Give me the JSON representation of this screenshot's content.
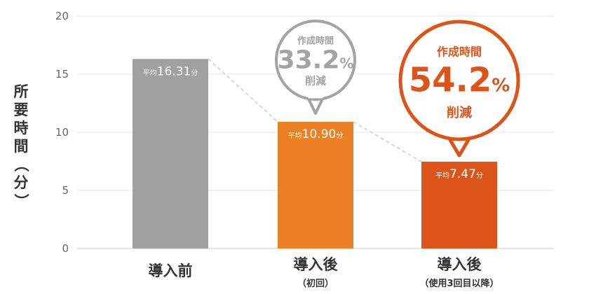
{
  "chart_data": {
    "type": "bar",
    "ylabel": "所要時間（分）",
    "ylim": [
      0,
      20
    ],
    "yticks": [
      0,
      5,
      10,
      15,
      20
    ],
    "grid": true,
    "categories": [
      {
        "label": "導入前",
        "sublabel": ""
      },
      {
        "label": "導入後",
        "sublabel": "（初回）"
      },
      {
        "label": "導入後",
        "sublabel": "（使用3回目以降）"
      }
    ],
    "values": [
      16.31,
      10.9,
      7.47
    ],
    "data_labels": [
      {
        "prefix": "平均",
        "value": "16.31",
        "unit": "分"
      },
      {
        "prefix": "平均",
        "value": "10.90",
        "unit": "分"
      },
      {
        "prefix": "平均",
        "value": "7.47",
        "unit": "分"
      }
    ],
    "colors": [
      "#a0a0a0",
      "#ec8024",
      "#dc5418"
    ],
    "callouts": [
      {
        "bar_index": 1,
        "line1": "作成時間",
        "value": "33.2",
        "unit": "%",
        "line3": "削減",
        "color": "#a3a3a3"
      },
      {
        "bar_index": 2,
        "line1": "作成時間",
        "value": "54.2",
        "unit": "%",
        "line3": "削減",
        "color": "#dc5418"
      }
    ]
  }
}
